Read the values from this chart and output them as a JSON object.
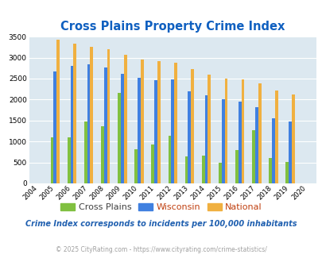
{
  "title": "Cross Plains Property Crime Index",
  "years": [
    2004,
    2005,
    2006,
    2007,
    2008,
    2009,
    2010,
    2011,
    2012,
    2013,
    2014,
    2015,
    2016,
    2017,
    2018,
    2019,
    2020
  ],
  "cross_plains": [
    0,
    1100,
    1100,
    1480,
    1360,
    2150,
    820,
    920,
    1130,
    640,
    660,
    500,
    800,
    1270,
    600,
    520,
    0
  ],
  "wisconsin": [
    0,
    2670,
    2810,
    2840,
    2760,
    2610,
    2510,
    2470,
    2480,
    2190,
    2100,
    2000,
    1960,
    1810,
    1550,
    1470,
    0
  ],
  "national": [
    0,
    3430,
    3330,
    3260,
    3210,
    3060,
    2960,
    2910,
    2870,
    2730,
    2600,
    2500,
    2480,
    2390,
    2220,
    2120,
    0
  ],
  "bar_width": 0.18,
  "color_cross_plains": "#80c040",
  "color_wisconsin": "#4080e0",
  "color_national": "#f0b040",
  "bg_color": "#dce8f0",
  "ylim": [
    0,
    3500
  ],
  "yticks": [
    0,
    500,
    1000,
    1500,
    2000,
    2500,
    3000,
    3500
  ],
  "title_color": "#1060c0",
  "title_fontsize": 10.5,
  "footnote1": "Crime Index corresponds to incidents per 100,000 inhabitants",
  "footnote2": "© 2025 CityRating.com - https://www.cityrating.com/crime-statistics/",
  "legend_labels": [
    "Cross Plains",
    "Wisconsin",
    "National"
  ],
  "legend_text_colors": [
    "#606060",
    "#e06020",
    "#e06020"
  ],
  "footnote1_color": "#2060b0",
  "footnote2_color": "#a0a0a0"
}
